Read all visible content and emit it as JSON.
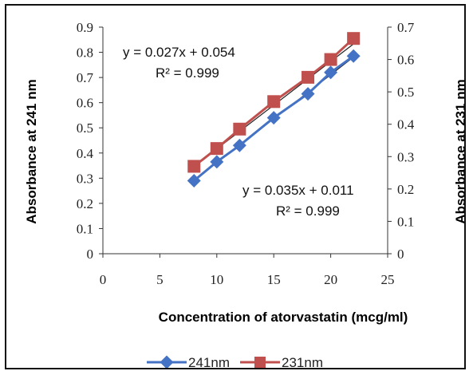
{
  "chart_data": {
    "type": "scatter",
    "x": [
      8,
      10,
      12,
      15,
      18,
      20,
      22
    ],
    "xlabel": "Concentration of atorvastatin (mcg/ml)",
    "xlim": [
      0,
      25
    ],
    "xticks": [
      0,
      5,
      10,
      15,
      20,
      25
    ],
    "ylabel_left": "Absorbance at 241 nm",
    "ylim_left": [
      0,
      0.9
    ],
    "yticks_left": [
      "0",
      "0.1",
      "0.2",
      "0.3",
      "0.4",
      "0.5",
      "0.6",
      "0.7",
      "0.8",
      "0.9"
    ],
    "ylabel_right": "Absorbance at 231 nm",
    "ylim_right": [
      0,
      0.7
    ],
    "yticks_right": [
      "0",
      "0.1",
      "0.2",
      "0.3",
      "0.4",
      "0.5",
      "0.6",
      "0.7"
    ],
    "grid": false,
    "legend_position": "bottom",
    "series": [
      {
        "name": "241nm",
        "axis": "left",
        "color": "#4472C4",
        "marker": "diamond",
        "values": [
          0.29,
          0.365,
          0.43,
          0.54,
          0.635,
          0.72,
          0.785
        ],
        "trendline": {
          "slope": 0.035,
          "intercept": 0.011
        }
      },
      {
        "name": "231nm",
        "axis": "right",
        "color": "#C0504D",
        "marker": "square",
        "values": [
          0.27,
          0.325,
          0.385,
          0.47,
          0.545,
          0.6,
          0.665
        ],
        "trendline": {
          "slope": 0.027,
          "intercept": 0.054
        }
      }
    ],
    "annotations": [
      {
        "line1": "y = 0.027x + 0.054",
        "line2": "R² = 0.999"
      },
      {
        "line1": "y = 0.035x + 0.011",
        "line2": "R² = 0.999"
      }
    ]
  }
}
